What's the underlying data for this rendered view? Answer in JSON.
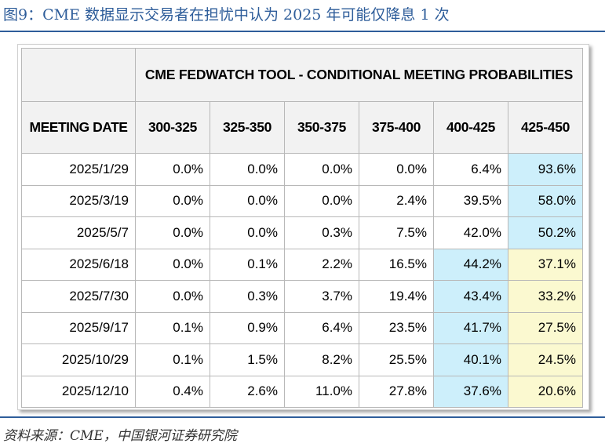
{
  "figure": {
    "title": "图9：CME 数据显示交易者在担忧中认为 2025 年可能仅降息 1 次",
    "source": "资料来源：CME，中国银河证券研究院"
  },
  "table": {
    "super_header": "CME FEDWATCH TOOL - CONDITIONAL MEETING PROBABILITIES",
    "date_header": "MEETING DATE",
    "columns": [
      "300-325",
      "325-350",
      "350-375",
      "375-400",
      "400-425",
      "425-450"
    ],
    "rows": [
      {
        "date": "2025/1/29",
        "values": [
          "0.0%",
          "0.0%",
          "0.0%",
          "0.0%",
          "6.4%",
          "93.6%"
        ]
      },
      {
        "date": "2025/3/19",
        "values": [
          "0.0%",
          "0.0%",
          "0.0%",
          "2.4%",
          "39.5%",
          "58.0%"
        ]
      },
      {
        "date": "2025/5/7",
        "values": [
          "0.0%",
          "0.0%",
          "0.3%",
          "7.5%",
          "42.0%",
          "50.2%"
        ]
      },
      {
        "date": "2025/6/18",
        "values": [
          "0.0%",
          "0.1%",
          "2.2%",
          "16.5%",
          "44.2%",
          "37.1%"
        ]
      },
      {
        "date": "2025/7/30",
        "values": [
          "0.0%",
          "0.3%",
          "3.7%",
          "19.4%",
          "43.4%",
          "33.2%"
        ]
      },
      {
        "date": "2025/9/17",
        "values": [
          "0.1%",
          "0.9%",
          "6.4%",
          "23.5%",
          "41.7%",
          "27.5%"
        ]
      },
      {
        "date": "2025/10/29",
        "values": [
          "0.1%",
          "1.5%",
          "8.2%",
          "25.5%",
          "40.1%",
          "24.5%"
        ]
      },
      {
        "date": "2025/12/10",
        "values": [
          "0.4%",
          "2.6%",
          "11.0%",
          "27.8%",
          "37.6%",
          "20.6%"
        ]
      }
    ],
    "highlights": [
      [
        "",
        "",
        "",
        "",
        "",
        "blue"
      ],
      [
        "",
        "",
        "",
        "",
        "",
        "blue"
      ],
      [
        "",
        "",
        "",
        "",
        "",
        "blue"
      ],
      [
        "",
        "",
        "",
        "",
        "blue",
        "yellow"
      ],
      [
        "",
        "",
        "",
        "",
        "blue",
        "yellow"
      ],
      [
        "",
        "",
        "",
        "",
        "blue",
        "yellow"
      ],
      [
        "",
        "",
        "",
        "",
        "blue",
        "yellow"
      ],
      [
        "",
        "",
        "",
        "",
        "blue",
        "yellow"
      ]
    ],
    "colors": {
      "blue": "#cdeffb",
      "yellow": "#fbf9d0",
      "header": "#f2f2f2",
      "title": "#2e5d9a"
    }
  }
}
